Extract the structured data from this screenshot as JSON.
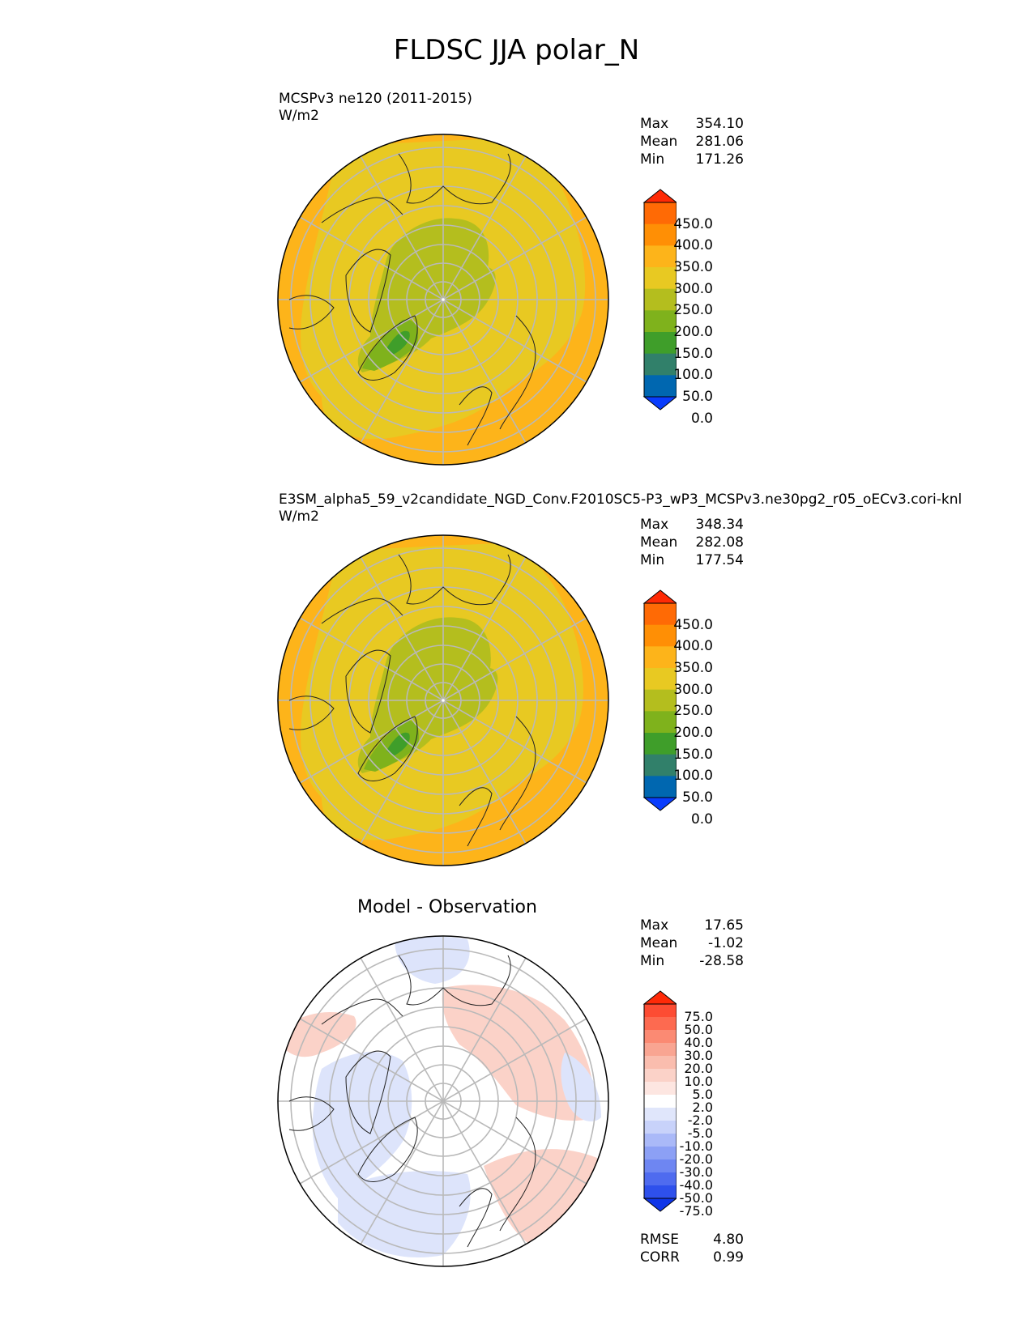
{
  "title": "FLDSC JJA polar_N",
  "panels": [
    {
      "title": "MCSPv3 ne120 (2011-2015)",
      "units": "W/m2",
      "stats": [
        {
          "label": "Max",
          "value": "354.10"
        },
        {
          "label": "Mean",
          "value": "281.06"
        },
        {
          "label": "Min",
          "value": "171.26"
        }
      ]
    },
    {
      "title": "E3SM_alpha5_59_v2candidate_NGD_Conv.F2010SC5-P3_wP3_MCSPv3.ne30pg2_r05_oECv3.cori-knl",
      "units": "W/m2",
      "stats": [
        {
          "label": "Max",
          "value": "348.34"
        },
        {
          "label": "Mean",
          "value": "282.08"
        },
        {
          "label": "Min",
          "value": "177.54"
        }
      ]
    },
    {
      "title": "Model - Observation",
      "stats": [
        {
          "label": "Max",
          "value": "17.65"
        },
        {
          "label": "Mean",
          "value": "-1.02"
        },
        {
          "label": "Min",
          "value": "-28.58"
        }
      ],
      "metrics": [
        {
          "label": "RMSE",
          "value": "4.80"
        },
        {
          "label": "CORR",
          "value": "0.99"
        }
      ]
    }
  ],
  "colorbar_main": {
    "labels": [
      "450.0",
      "400.0",
      "350.0",
      "300.0",
      "250.0",
      "200.0",
      "150.0",
      "100.0",
      "50.0",
      "0.0"
    ],
    "colors": [
      "#ff2a05",
      "#ff6a05",
      "#ff8f05",
      "#fdb41a",
      "#e8c922",
      "#b4be1e",
      "#7fb21c",
      "#3f9e2a",
      "#31806a",
      "#0067b0",
      "#0a3dfd"
    ]
  },
  "colorbar_diff": {
    "labels": [
      "75.0",
      "50.0",
      "40.0",
      "30.0",
      "20.0",
      "10.0",
      "5.0",
      "2.0",
      "-2.0",
      "-5.0",
      "-10.0",
      "-20.0",
      "-30.0",
      "-40.0",
      "-50.0",
      "-75.0"
    ],
    "colors": [
      "#ff2a08",
      "#fd4c33",
      "#fd6a50",
      "#fb8a73",
      "#f9a592",
      "#fabdae",
      "#fbd2c8",
      "#fde6e1",
      "#ffffff",
      "#e0e6fb",
      "#c8d2fa",
      "#aab9f8",
      "#8ca0f5",
      "#6e86f2",
      "#4f6bef",
      "#2e50ec",
      "#0f35e8"
    ]
  },
  "fields": {
    "ocean_base": "#fdb41a",
    "mid_band": "#e8c922",
    "arctic": "#b4be1e",
    "greenland": "#7fb21c",
    "greenland_core": "#3f9e2a",
    "diff_warm": "#fbd2c8",
    "diff_cool": "#dde4fb"
  }
}
